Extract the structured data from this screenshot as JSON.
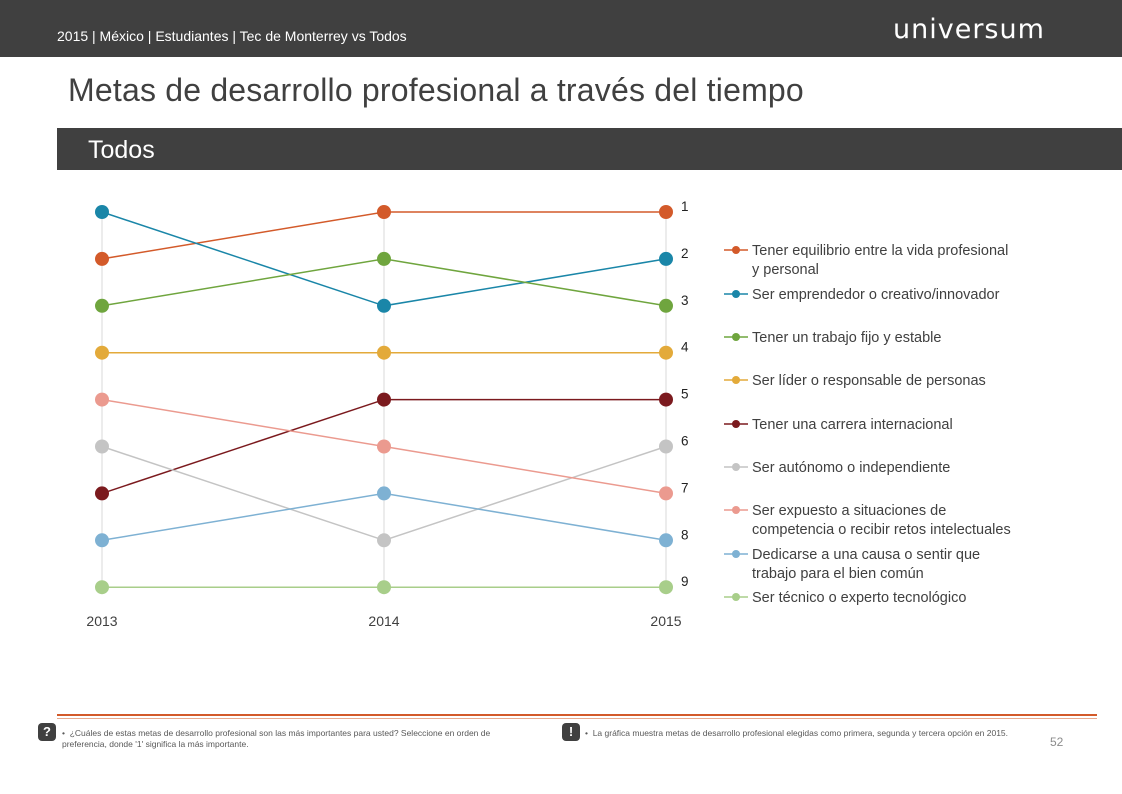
{
  "header": {
    "breadcrumb": "2015 | México | Estudiantes | Tec de Monterrey vs Todos",
    "logo": "universum"
  },
  "title": "Metas de desarrollo profesional a través del tiempo",
  "section_label": "Todos",
  "chart_data": {
    "type": "line",
    "x": [
      "2013",
      "2014",
      "2015"
    ],
    "y_rank_labels": [
      "1",
      "2",
      "3",
      "4",
      "5",
      "6",
      "7",
      "8",
      "9"
    ],
    "ylim": [
      1,
      9
    ],
    "y_inverted": true,
    "legend_position": "right",
    "series": [
      {
        "name": "Tener equilibrio entre la vida profesional y personal",
        "color": "#d35a2a",
        "values": [
          2,
          1,
          1
        ]
      },
      {
        "name": "Ser emprendedor o creativo/innovador",
        "color": "#1a86a8",
        "values": [
          1,
          3,
          2
        ]
      },
      {
        "name": "Tener un trabajo fijo y estable",
        "color": "#6fa53e",
        "values": [
          3,
          2,
          3
        ]
      },
      {
        "name": "Ser líder o responsable de personas",
        "color": "#e3aa3a",
        "values": [
          4,
          4,
          4
        ]
      },
      {
        "name": "Tener una carrera internacional",
        "color": "#7b1a1e",
        "values": [
          7,
          5,
          5
        ]
      },
      {
        "name": "Ser autónomo o independiente",
        "color": "#c4c4c4",
        "values": [
          6,
          8,
          6
        ]
      },
      {
        "name": "Ser expuesto a situaciones de competencia o recibir retos intelectuales",
        "color": "#eb9a8f",
        "values": [
          5,
          6,
          7
        ]
      },
      {
        "name": "Dedicarse a una causa o sentir que trabajo para el bien común",
        "color": "#7eb1d3",
        "values": [
          8,
          7,
          8
        ]
      },
      {
        "name": "Ser técnico o experto tecnológico",
        "color": "#a8ce8a",
        "values": [
          9,
          9,
          9
        ]
      }
    ],
    "legend_lines": [
      [
        "Tener equilibrio entre la vida profesional",
        "y personal"
      ],
      [
        "Ser emprendedor o creativo/innovador"
      ],
      [
        "Tener un trabajo fijo y estable"
      ],
      [
        "Ser líder o responsable de personas"
      ],
      [
        "Tener una carrera internacional"
      ],
      [
        "Ser autónomo o independiente"
      ],
      [
        "Ser expuesto a situaciones de",
        "competencia o recibir retos intelectuales"
      ],
      [
        "Dedicarse a una causa o sentir que",
        "trabajo para el bien común"
      ],
      [
        "Ser técnico o experto tecnológico"
      ]
    ]
  },
  "footer": {
    "question_icon": "?",
    "question_text": "¿Cuáles de estas metas de desarrollo profesional son las más importantes para usted? Seleccione en orden de preferencia, donde '1' significa la más importante.",
    "note_icon": "!",
    "note_text": "La gráfica muestra metas de desarrollo profesional elegidas como primera, segunda y tercera opción en 2015.",
    "page_number": "52"
  }
}
